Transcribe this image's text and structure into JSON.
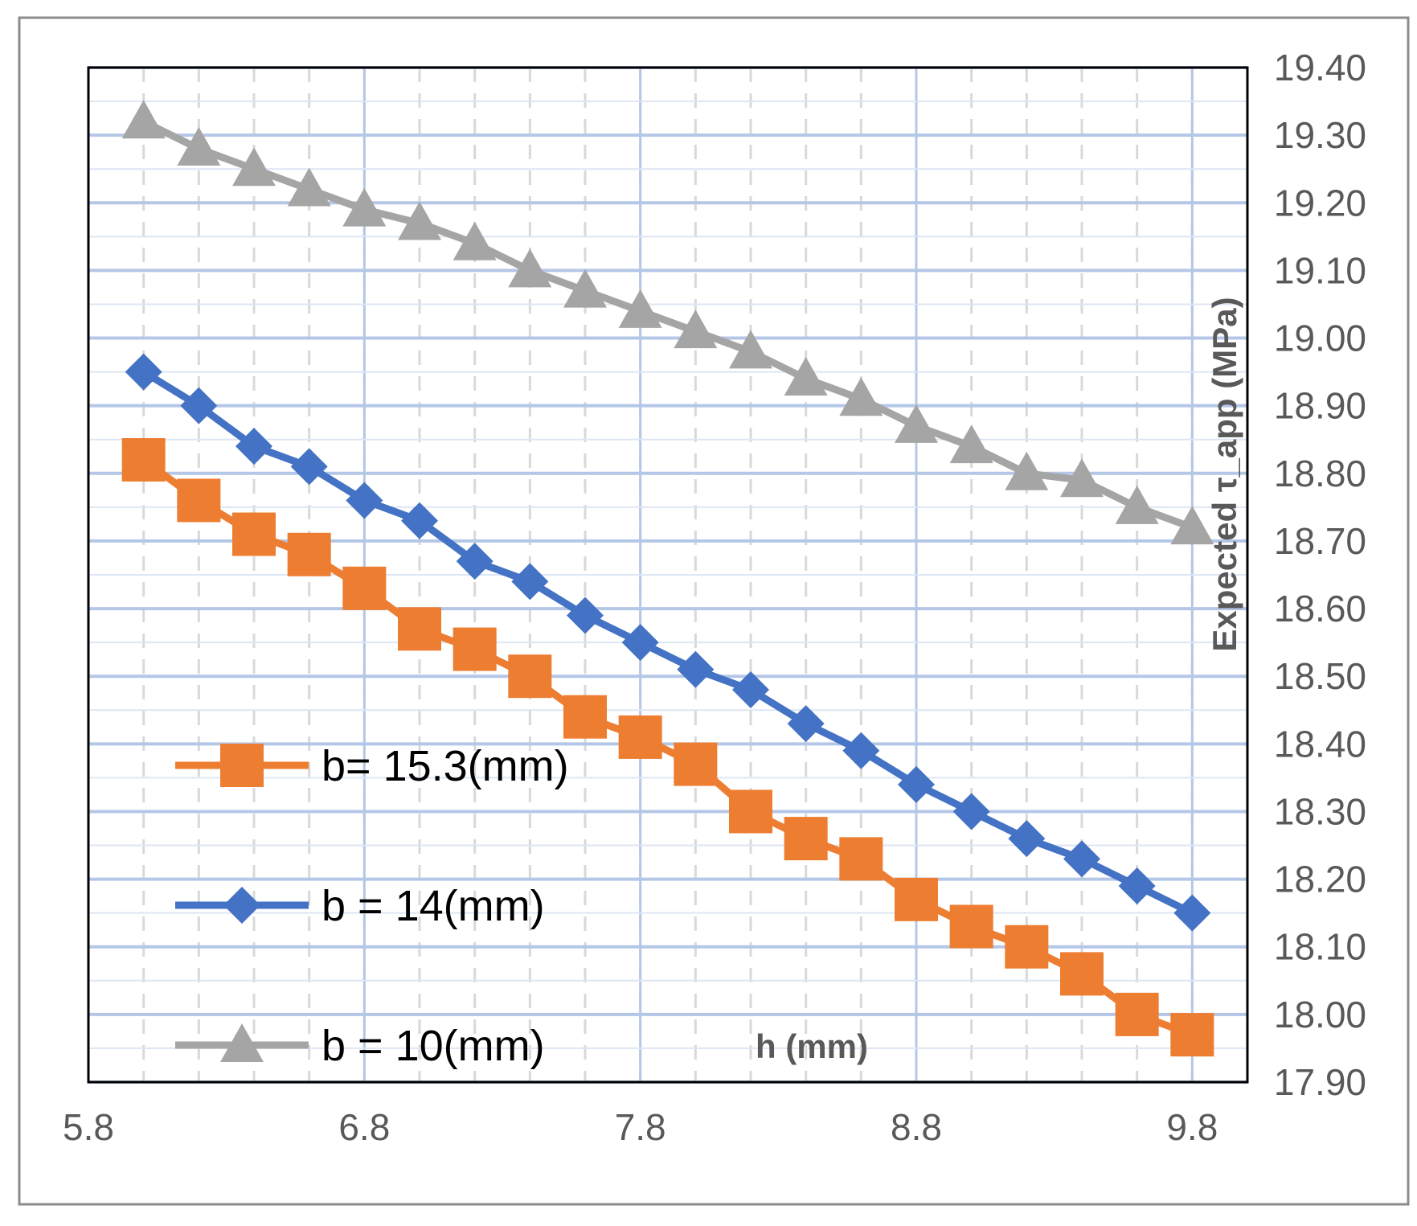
{
  "chart_data": {
    "type": "line",
    "xlabel": "h (mm)",
    "ylabel": "Expected τ_app (MPa)",
    "xlim": [
      5.8,
      10.0
    ],
    "ylim": [
      17.9,
      19.4
    ],
    "x_ticks": [
      "5.8",
      "6.8",
      "7.8",
      "8.8",
      "9.8"
    ],
    "y_ticks": [
      "17.90",
      "18.00",
      "18.10",
      "18.20",
      "18.30",
      "18.40",
      "18.50",
      "18.60",
      "18.70",
      "18.80",
      "18.90",
      "19.00",
      "19.10",
      "19.20",
      "19.30",
      "19.40"
    ],
    "x": [
      6.0,
      6.2,
      6.4,
      6.6,
      6.8,
      7.0,
      7.2,
      7.4,
      7.6,
      7.8,
      8.0,
      8.2,
      8.4,
      8.6,
      8.8,
      9.0,
      9.2,
      9.4,
      9.6,
      9.8
    ],
    "series": [
      {
        "name": "b= 15.3(mm)",
        "color": "#ED7D31",
        "marker": "square",
        "values": [
          18.82,
          18.76,
          18.71,
          18.68,
          18.63,
          18.57,
          18.54,
          18.5,
          18.44,
          18.41,
          18.37,
          18.3,
          18.26,
          18.23,
          18.17,
          18.13,
          18.1,
          18.06,
          18.0,
          17.97
        ]
      },
      {
        "name": "b = 14(mm)",
        "color": "#4472C4",
        "marker": "diamond",
        "values": [
          18.95,
          18.9,
          18.84,
          18.81,
          18.76,
          18.73,
          18.67,
          18.64,
          18.59,
          18.55,
          18.51,
          18.48,
          18.43,
          18.39,
          18.34,
          18.3,
          18.26,
          18.23,
          18.19,
          18.15
        ]
      },
      {
        "name": "b = 10(mm)",
        "color": "#A5A5A5",
        "marker": "triangle",
        "values": [
          19.32,
          19.28,
          19.25,
          19.22,
          19.19,
          19.17,
          19.14,
          19.1,
          19.07,
          19.04,
          19.01,
          18.98,
          18.94,
          18.91,
          18.87,
          18.84,
          18.8,
          18.79,
          18.75,
          18.72
        ]
      }
    ],
    "legend_position": "bottom-left"
  }
}
